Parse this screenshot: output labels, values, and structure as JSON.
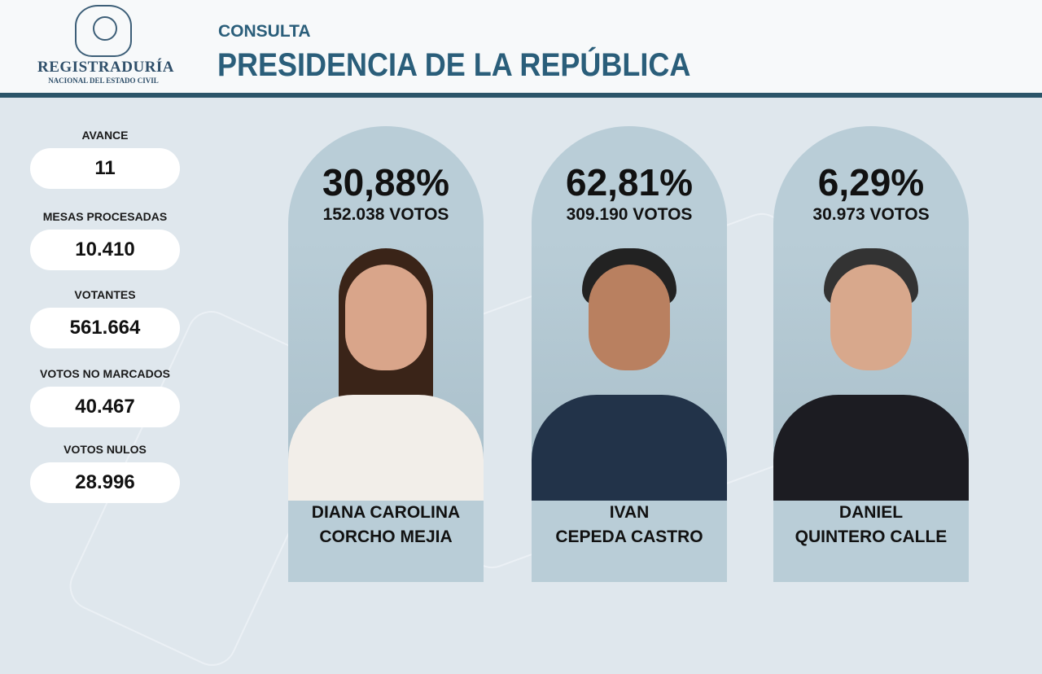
{
  "header": {
    "logo_line1": "REGISTRADURÍA",
    "logo_line2": "NACIONAL DEL ESTADO CIVIL",
    "subtitle": "CONSULTA",
    "title": "PRESIDENCIA DE LA REPÚBLICA"
  },
  "stats": [
    {
      "label": "AVANCE",
      "value": "11"
    },
    {
      "label": "MESAS PROCESADAS",
      "value": "10.410"
    },
    {
      "label": "VOTANTES",
      "value": "561.664"
    },
    {
      "label": "VOTOS NO MARCADOS",
      "value": "40.467"
    },
    {
      "label": "VOTOS NULOS",
      "value": "28.996"
    }
  ],
  "candidates": [
    {
      "percent": "30,88%",
      "votes": "152.038 VOTOS",
      "name1": "DIANA CAROLINA",
      "name2": "CORCHO MEJIA"
    },
    {
      "percent": "62,81%",
      "votes": "309.190 VOTOS",
      "name1": "IVAN",
      "name2": "CEPEDA CASTRO"
    },
    {
      "percent": "6,29%",
      "votes": "30.973 VOTOS",
      "name1": "DANIEL",
      "name2": "QUINTERO CALLE"
    }
  ],
  "colors": {
    "accent": "#2a5e7a",
    "card": "#b9cdd7",
    "background": "#dfe7ed"
  }
}
